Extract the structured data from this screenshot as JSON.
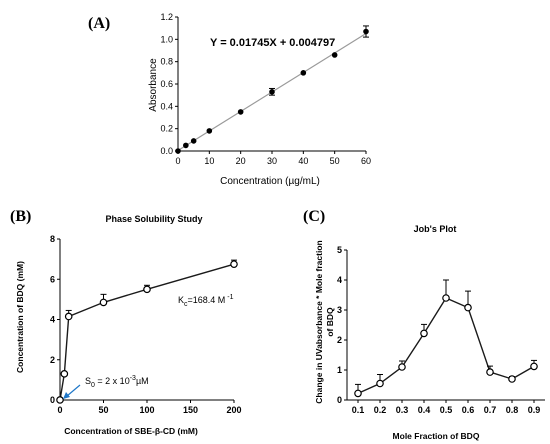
{
  "chart_data": [
    {
      "panel": "(A)",
      "type": "scatter",
      "title": "",
      "xlabel": "Concentration (µg/mL)",
      "ylabel": "Absorbance",
      "xlim": [
        0,
        60
      ],
      "ylim": [
        0,
        1.2
      ],
      "xticks": [
        "0",
        "10",
        "20",
        "30",
        "40",
        "50",
        "60"
      ],
      "yticks": [
        "0.0",
        "0.2",
        "0.4",
        "0.6",
        "0.8",
        "1.0",
        "1.2"
      ],
      "annotation": "Y = 0.01745X + 0.004797",
      "fit": {
        "slope": 0.01745,
        "intercept": 0.004797
      },
      "series": [
        {
          "x": [
            0,
            2.5,
            5,
            10,
            20,
            30,
            40,
            50,
            60
          ],
          "y": [
            0.0,
            0.05,
            0.09,
            0.18,
            0.35,
            0.53,
            0.7,
            0.86,
            1.07
          ],
          "err": [
            0,
            0,
            0,
            0,
            0,
            0.03,
            0,
            0,
            0.05
          ]
        }
      ]
    },
    {
      "panel": "(B)",
      "type": "line",
      "title": "Phase Solubility Study",
      "xlabel": "Concentration of SBE-β-CD (mM)",
      "ylabel": "Concentration of BDQ (mM)",
      "xlim": [
        0,
        200
      ],
      "ylim": [
        0,
        8
      ],
      "xticks": [
        "0",
        "50",
        "100",
        "150",
        "200"
      ],
      "yticks": [
        "0",
        "2",
        "4",
        "6",
        "8"
      ],
      "kc_label": "K",
      "kc_sub": "c",
      "kc_value": "=168.4 M",
      "kc_sup": " -1",
      "s0_label": "S",
      "s0_sub": "0",
      "s0_mid": " = 2 x 10",
      "s0_sup": "-3",
      "s0_unit": "µM",
      "series": [
        {
          "x": [
            0,
            5,
            10,
            50,
            100,
            200
          ],
          "y": [
            0.002,
            1.3,
            4.15,
            4.85,
            5.5,
            6.75
          ],
          "err": [
            0,
            0,
            0.3,
            0.4,
            0.2,
            0.2
          ]
        }
      ]
    },
    {
      "panel": "(C)",
      "type": "line",
      "title": "Job's Plot",
      "xlabel": "Mole Fraction of BDQ",
      "ylabel_line1": "Change in UVabsorbance * Mole fraction",
      "ylabel_line2": "of BDQ",
      "xlim": [
        0.05,
        0.95
      ],
      "ylim": [
        0,
        5
      ],
      "xticks": [
        "0.1",
        "0.2",
        "0.3",
        "0.4",
        "0.5",
        "0.6",
        "0.7",
        "0.8",
        "0.9"
      ],
      "yticks": [
        "0",
        "1",
        "2",
        "3",
        "4",
        "5"
      ],
      "series": [
        {
          "x": [
            0.1,
            0.2,
            0.3,
            0.4,
            0.5,
            0.6,
            0.7,
            0.8,
            0.9
          ],
          "y": [
            0.22,
            0.55,
            1.1,
            2.22,
            3.4,
            3.08,
            0.93,
            0.7,
            1.12
          ],
          "err": [
            0.3,
            0.3,
            0.2,
            0.3,
            0.6,
            0.55,
            0.2,
            0.08,
            0.2
          ]
        }
      ]
    }
  ],
  "colors": {
    "axis": "#000000",
    "markerA": "#000000",
    "fitA": "#9a9a9a",
    "lineB": "#1a1a1a",
    "lineC": "#1a1a1a",
    "arrow": "#1f77c8"
  }
}
